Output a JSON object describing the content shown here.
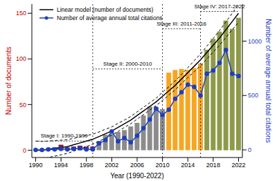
{
  "chart_data": {
    "type": "bar",
    "x_label": "Year (1990-2022)",
    "y_label": "Number of documents",
    "y2_label": "Number of average annual total citations",
    "x": [
      1990,
      1991,
      1992,
      1993,
      1994,
      1995,
      1996,
      1997,
      1998,
      1999,
      2000,
      2001,
      2002,
      2003,
      2004,
      2005,
      2006,
      2007,
      2008,
      2009,
      2010,
      2011,
      2012,
      2013,
      2014,
      2015,
      2016,
      2017,
      2018,
      2019,
      2020,
      2021,
      2022
    ],
    "values": [
      1,
      1,
      2,
      3,
      6,
      3,
      4,
      5,
      4,
      4,
      10,
      17,
      18,
      20,
      22,
      26,
      30,
      38,
      48,
      47,
      45,
      85,
      88,
      89,
      88,
      90,
      95,
      110,
      122,
      130,
      142,
      133,
      145
    ],
    "colors": [
      "#8b1a2b",
      "#8b1a2b",
      "#8b1a2b",
      "#8b1a2b",
      "#8b1a2b",
      "#8b1a2b",
      "#8b1a2b",
      "#8b1a2b",
      "#8b1a2b",
      "#8b1a2b",
      "#8c8c8c",
      "#8c8c8c",
      "#8c8c8c",
      "#8c8c8c",
      "#8c8c8c",
      "#8c8c8c",
      "#8c8c8c",
      "#8c8c8c",
      "#8c8c8c",
      "#8c8c8c",
      "#8c8c8c",
      "#f5a623",
      "#f5a623",
      "#f5a623",
      "#f5a623",
      "#f5a623",
      "#f5a623",
      "#8e9a4a",
      "#8e9a4a",
      "#8e9a4a",
      "#8e9a4a",
      "#8e9a4a",
      "#8e9a4a"
    ],
    "xlim": [
      1989.4,
      2022.6
    ],
    "xticks": [
      1990,
      1994,
      1998,
      2002,
      2006,
      2010,
      2014,
      2018,
      2022
    ],
    "ylim": [
      -8,
      160
    ],
    "yticks": [
      0,
      50,
      100,
      150
    ],
    "y2lim": [
      -70,
      1340
    ],
    "y2ticks": [
      0,
      500,
      1000
    ],
    "grid": false,
    "legend": "upper left",
    "series": [
      {
        "name": "Linear model (number of documents)",
        "type": "line",
        "color": "#000000",
        "line_style": "solid",
        "values": [
          0,
          0,
          1,
          2,
          3,
          4,
          6,
          8,
          10,
          12,
          15,
          18,
          21,
          25,
          29,
          33,
          38,
          43,
          48,
          53,
          59,
          65,
          71,
          78,
          85,
          92,
          99,
          107,
          115,
          123,
          132,
          141,
          150
        ],
        "lower": [
          -10,
          -9.5,
          -8,
          -6.5,
          -5,
          -3.5,
          -1,
          1.5,
          4,
          6.5,
          10,
          13,
          16.5,
          20.5,
          25,
          29,
          34,
          39,
          44,
          49,
          54.5,
          60.5,
          66,
          73,
          79.5,
          86,
          92.5,
          100,
          107.5,
          115,
          123.5,
          132,
          140
        ],
        "upper": [
          10,
          9.5,
          10,
          10.5,
          11,
          11.5,
          13,
          14.5,
          16,
          17.5,
          20,
          23,
          25.5,
          29.5,
          33,
          37,
          42,
          47,
          52,
          57,
          63.5,
          69.5,
          76,
          83,
          90.5,
          98,
          105.5,
          114,
          122.5,
          131,
          140.5,
          150,
          160
        ]
      },
      {
        "name": "Number of average annual total citations",
        "type": "line",
        "color": "#1f3fbf",
        "marker": "circle",
        "axis": "y2",
        "values": [
          0,
          0,
          5,
          5,
          10,
          5,
          10,
          15,
          5,
          5,
          60,
          90,
          170,
          80,
          110,
          70,
          130,
          200,
          280,
          380,
          320,
          370,
          470,
          530,
          600,
          580,
          500,
          700,
          730,
          800,
          920,
          700,
          680
        ]
      }
    ],
    "reference_lines": [
      1999,
      2010,
      2016
    ],
    "annotations": [
      {
        "text": "Stage I: 1990-1999",
        "x": [
          1990,
          1999
        ],
        "y": 10
      },
      {
        "text": "Stage II: 2000-2010",
        "x": [
          1999,
          2010
        ],
        "y": 89
      },
      {
        "text": "Stage III: 2011-2016",
        "x": [
          2010,
          2016
        ],
        "y": 133
      },
      {
        "text": "Stage IV: 2017-2022",
        "x": [
          2016,
          2022
        ],
        "y": 152
      }
    ]
  }
}
